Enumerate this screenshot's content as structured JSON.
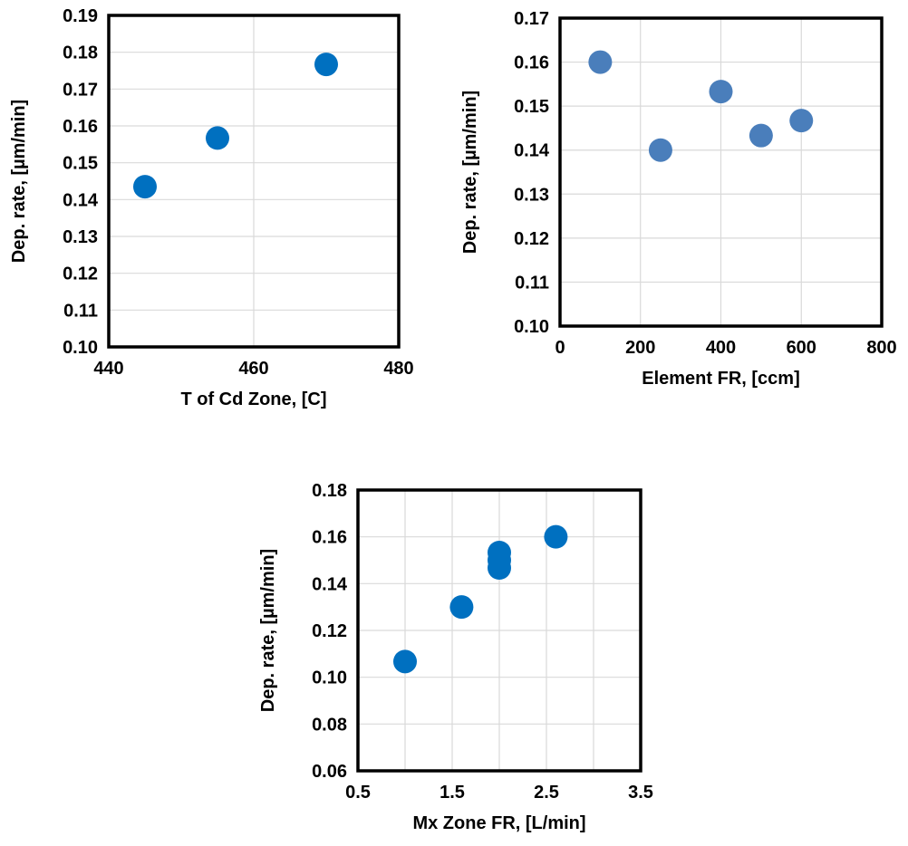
{
  "chart_data": [
    {
      "type": "scatter",
      "xlabel": "T of Cd Zone, [C]",
      "ylabel": "Dep. rate, [µm/min]",
      "xlim": [
        440,
        480
      ],
      "ylim": [
        0.1,
        0.19
      ],
      "xticks": [
        "440",
        "460",
        "480"
      ],
      "yticks": [
        "0.10",
        "0.11",
        "0.12",
        "0.13",
        "0.14",
        "0.15",
        "0.16",
        "0.17",
        "0.18",
        "0.19"
      ],
      "xtick_values": [
        440,
        460,
        480
      ],
      "ytick_values": [
        0.1,
        0.11,
        0.12,
        0.13,
        0.14,
        0.15,
        0.16,
        0.17,
        0.18,
        0.19
      ],
      "grid": true,
      "color": "#0070c0",
      "points": [
        {
          "x": 445,
          "y": 0.1435
        },
        {
          "x": 455,
          "y": 0.1567
        },
        {
          "x": 470,
          "y": 0.1767
        }
      ]
    },
    {
      "type": "scatter",
      "xlabel": "Element FR, [ccm]",
      "ylabel": "Dep. rate, [µm/min]",
      "xlim": [
        0,
        800
      ],
      "ylim": [
        0.1,
        0.17
      ],
      "xticks": [
        "0",
        "200",
        "400",
        "600",
        "800"
      ],
      "yticks": [
        "0.10",
        "0.11",
        "0.12",
        "0.13",
        "0.14",
        "0.15",
        "0.16",
        "0.17"
      ],
      "xtick_values": [
        0,
        200,
        400,
        600,
        800
      ],
      "ytick_values": [
        0.1,
        0.11,
        0.12,
        0.13,
        0.14,
        0.15,
        0.16,
        0.17
      ],
      "grid": true,
      "color": "#4a7ebb",
      "points": [
        {
          "x": 100,
          "y": 0.16
        },
        {
          "x": 250,
          "y": 0.14
        },
        {
          "x": 400,
          "y": 0.1533
        },
        {
          "x": 500,
          "y": 0.1433
        },
        {
          "x": 600,
          "y": 0.1467
        }
      ]
    },
    {
      "type": "scatter",
      "xlabel": "Mx Zone FR, [L/min]",
      "ylabel": "Dep. rate, [µm/min]",
      "xlim": [
        0.5,
        3.5
      ],
      "ylim": [
        0.06,
        0.18
      ],
      "xticks": [
        "0.5",
        "1.5",
        "2.5",
        "3.5"
      ],
      "yticks": [
        "0.06",
        "0.08",
        "0.10",
        "0.12",
        "0.14",
        "0.16",
        "0.18"
      ],
      "xtick_values": [
        0.5,
        1.5,
        2.5,
        3.5
      ],
      "ytick_values": [
        0.06,
        0.08,
        0.1,
        0.12,
        0.14,
        0.16,
        0.18
      ],
      "xgrid_values": [
        0.5,
        1.0,
        1.5,
        2.0,
        2.5,
        3.0,
        3.5
      ],
      "grid": true,
      "color": "#0070c0",
      "points": [
        {
          "x": 1.0,
          "y": 0.1067
        },
        {
          "x": 1.6,
          "y": 0.13
        },
        {
          "x": 2.0,
          "y": 0.1533
        },
        {
          "x": 2.0,
          "y": 0.15
        },
        {
          "x": 2.0,
          "y": 0.1467
        },
        {
          "x": 2.6,
          "y": 0.16
        }
      ]
    }
  ]
}
